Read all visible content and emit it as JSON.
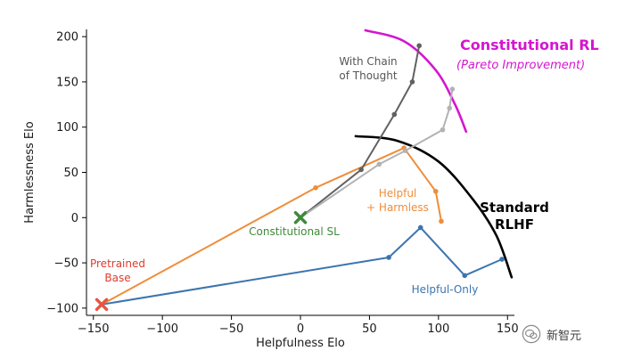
{
  "chart_data": {
    "type": "line",
    "xlabel": "Helpfulness Elo",
    "ylabel": "Harmlessness Elo",
    "xlim": [
      -155,
      155
    ],
    "ylim": [
      -108,
      208
    ],
    "x_ticks": [
      -150,
      -100,
      -50,
      0,
      50,
      100,
      150
    ],
    "y_ticks": [
      -100,
      -50,
      0,
      50,
      100,
      150,
      200
    ],
    "x_tick_labels": [
      "−150",
      "−100",
      "−50",
      "0",
      "50",
      "100",
      "150"
    ],
    "y_tick_labels": [
      "−100",
      "−50",
      "0",
      "50",
      "100",
      "150",
      "200"
    ],
    "grid": false,
    "series": [
      {
        "name": "Helpful-Only",
        "color": "#3b75af",
        "points": [
          [
            -144,
            -96
          ],
          [
            64,
            -44
          ],
          [
            87,
            -11
          ],
          [
            119,
            -64
          ],
          [
            146,
            -46
          ]
        ]
      },
      {
        "name": "Helpful + Harmless",
        "color": "#ef8d3a",
        "points": [
          [
            -144,
            -96
          ],
          [
            11,
            33
          ],
          [
            75,
            77
          ],
          [
            98,
            29
          ],
          [
            102,
            -4
          ]
        ]
      },
      {
        "name": "With Chain of Thought",
        "color": "#616161",
        "points": [
          [
            0,
            0
          ],
          [
            44,
            53
          ],
          [
            68,
            114
          ],
          [
            81,
            150
          ],
          [
            86,
            190
          ]
        ]
      },
      {
        "name": "Constitutional RL",
        "color": "#b3b3b3",
        "points": [
          [
            0,
            0
          ],
          [
            57,
            59
          ],
          [
            76,
            74
          ],
          [
            103,
            97
          ],
          [
            108,
            121
          ],
          [
            110,
            142
          ]
        ]
      }
    ],
    "markers": [
      {
        "name": "Pretrained Base",
        "color": "#e8553f",
        "x": -144,
        "y": -96
      },
      {
        "name": "Constitutional SL",
        "color": "#3f8a3a",
        "x": 0,
        "y": 0
      }
    ],
    "frontiers": [
      {
        "name": "Standard RLHF",
        "color": "#000000",
        "points": [
          [
            40,
            90
          ],
          [
            70,
            85
          ],
          [
            100,
            62
          ],
          [
            125,
            20
          ],
          [
            142,
            -20
          ],
          [
            153,
            -66
          ]
        ]
      },
      {
        "name": "Constitutional RL",
        "color": "#d416cf",
        "points": [
          [
            47,
            207
          ],
          [
            75,
            195
          ],
          [
            98,
            163
          ],
          [
            112,
            125
          ],
          [
            120,
            95
          ]
        ]
      }
    ],
    "annotations": {
      "constitutional_rl_title": "Constitutional RL",
      "constitutional_rl_subtitle": "(Pareto Improvement)",
      "standard_rlhf_line1": "Standard",
      "standard_rlhf_line2": "RLHF",
      "chain_of_thought_line1": "With Chain",
      "chain_of_thought_line2": "of Thought",
      "helpful_harmless_line1": "Helpful",
      "helpful_harmless_line2": "+ Harmless",
      "constitutional_sl": "Constitutional SL",
      "pretrained_base_line1": "Pretrained",
      "pretrained_base_line2": "Base",
      "helpful_only": "Helpful-Only"
    }
  },
  "watermark": {
    "text": "新智元",
    "icon": "wechat-icon"
  }
}
